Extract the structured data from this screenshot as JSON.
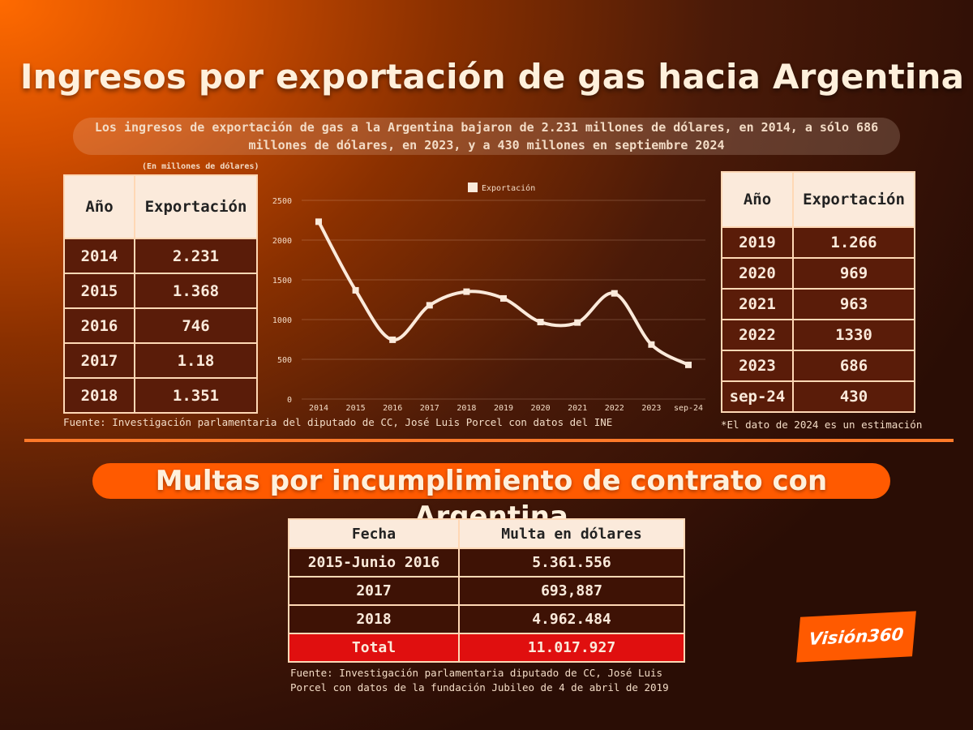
{
  "title": "Ingresos por exportación de gas hacia Argentina",
  "subtitle": "Los ingresos de exportación de gas a la Argentina bajaron de 2.231 millones de dólares, en 2014, a sólo 686 millones de dólares, en 2023, y a 430 millones en septiembre 2024",
  "units_note": "(En millones de dólares)",
  "left_table": {
    "headers": [
      "Año",
      "Exportación"
    ],
    "rows": [
      [
        "2014",
        "2.231"
      ],
      [
        "2015",
        "1.368"
      ],
      [
        "2016",
        "746"
      ],
      [
        "2017",
        "1.18"
      ],
      [
        "2018",
        "1.351"
      ]
    ]
  },
  "right_table": {
    "headers": [
      "Año",
      "Exportación"
    ],
    "rows": [
      [
        "2019",
        "1.266"
      ],
      [
        "2020",
        "969"
      ],
      [
        "2021",
        "963"
      ],
      [
        "2022",
        "1330"
      ],
      [
        "2023",
        "686"
      ],
      [
        "sep-24",
        "430"
      ]
    ]
  },
  "source_top": "Fuente: Investigación parlamentaria del diputado de CC, José Luis Porcel con datos del INE",
  "note_2024": "*El dato de 2024 es un estimación",
  "fines_title": "Multas por incumplimiento de contrato con Argentina",
  "fines_table": {
    "headers": [
      "Fecha",
      "Multa en dólares"
    ],
    "rows": [
      [
        "2015-Junio 2016",
        "5.361.556"
      ],
      [
        "2017",
        "693,887"
      ],
      [
        "2018",
        "4.962.484"
      ]
    ],
    "total": [
      "Total",
      "11.017.927"
    ]
  },
  "source_bottom_1": "Fuente: Investigación parlamentaria diputado de CC, José Luis",
  "source_bottom_2": "Porcel con datos de la fundación Jubileo de 4 de abril de 2019",
  "logo_text": "Visión360",
  "chart_data": {
    "type": "line",
    "categories": [
      "2014",
      "2015",
      "2016",
      "2017",
      "2018",
      "2019",
      "2020",
      "2021",
      "2022",
      "2023",
      "sep-24"
    ],
    "series": [
      {
        "name": "Exportación",
        "values": [
          2231,
          1368,
          746,
          1180,
          1351,
          1266,
          969,
          963,
          1330,
          686,
          430
        ]
      }
    ],
    "ylim": [
      0,
      2500
    ],
    "yticks": [
      0,
      500,
      1000,
      1500,
      2000,
      2500
    ],
    "title": "",
    "xlabel": "",
    "ylabel": "",
    "legend": "top",
    "grid": true,
    "line_color": "#fbeadb"
  }
}
